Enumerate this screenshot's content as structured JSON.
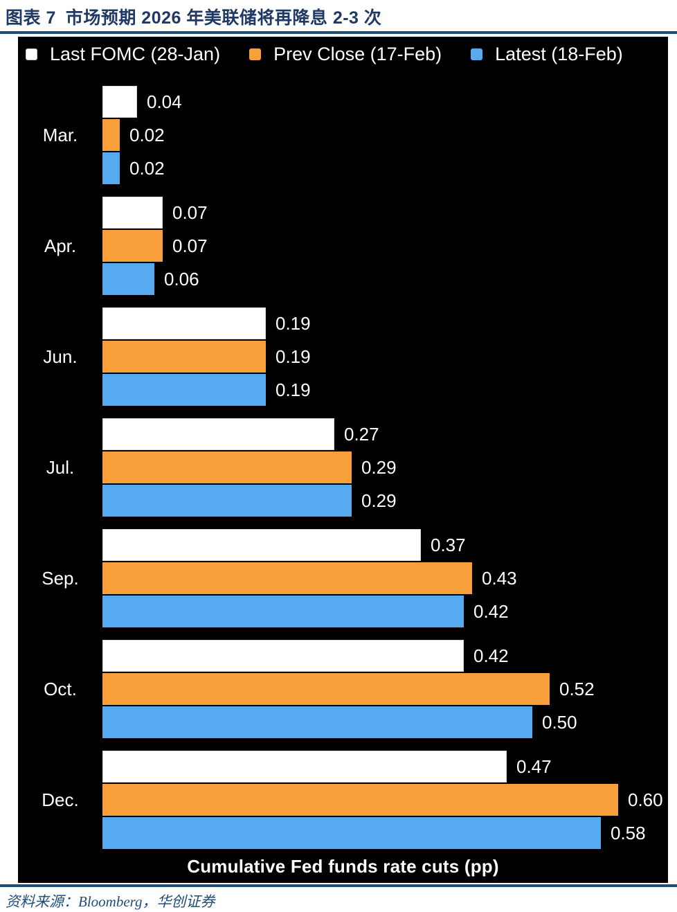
{
  "header": {
    "figure_label": "图表 7",
    "title": "市场预期 2026 年美联储将再降息 2-3 次"
  },
  "chart_data": {
    "type": "bar",
    "orientation": "horizontal",
    "title": "",
    "xlabel": "Cumulative Fed funds rate cuts (pp)",
    "ylabel": "",
    "xlim": [
      0,
      0.64
    ],
    "grid": false,
    "legend_position": "top",
    "background": "#000000",
    "categories": [
      "Mar.",
      "Apr.",
      "Jun.",
      "Jul.",
      "Sep.",
      "Oct.",
      "Dec."
    ],
    "series": [
      {
        "name": "Last FOMC (28-Jan)",
        "color": "#FFFFFF",
        "values": [
          0.04,
          0.07,
          0.19,
          0.27,
          0.37,
          0.42,
          0.47
        ]
      },
      {
        "name": "Prev Close (17-Feb)",
        "color": "#F7A03B",
        "values": [
          0.02,
          0.07,
          0.19,
          0.29,
          0.43,
          0.52,
          0.6
        ]
      },
      {
        "name": "Latest (18-Feb)",
        "color": "#55AAF0",
        "values": [
          0.02,
          0.06,
          0.19,
          0.29,
          0.42,
          0.5,
          0.58
        ]
      }
    ],
    "value_labels": true
  },
  "footer": {
    "source": "资料来源：Bloomberg，华创证券"
  },
  "colors": {
    "title_text": "#1F3864",
    "rule": "#1F4E79",
    "panel_background": "#000000",
    "text_on_panel": "#FFFFFF",
    "bar_white": "#FFFFFF",
    "bar_orange": "#F7A03B",
    "bar_blue": "#55AAF0"
  }
}
